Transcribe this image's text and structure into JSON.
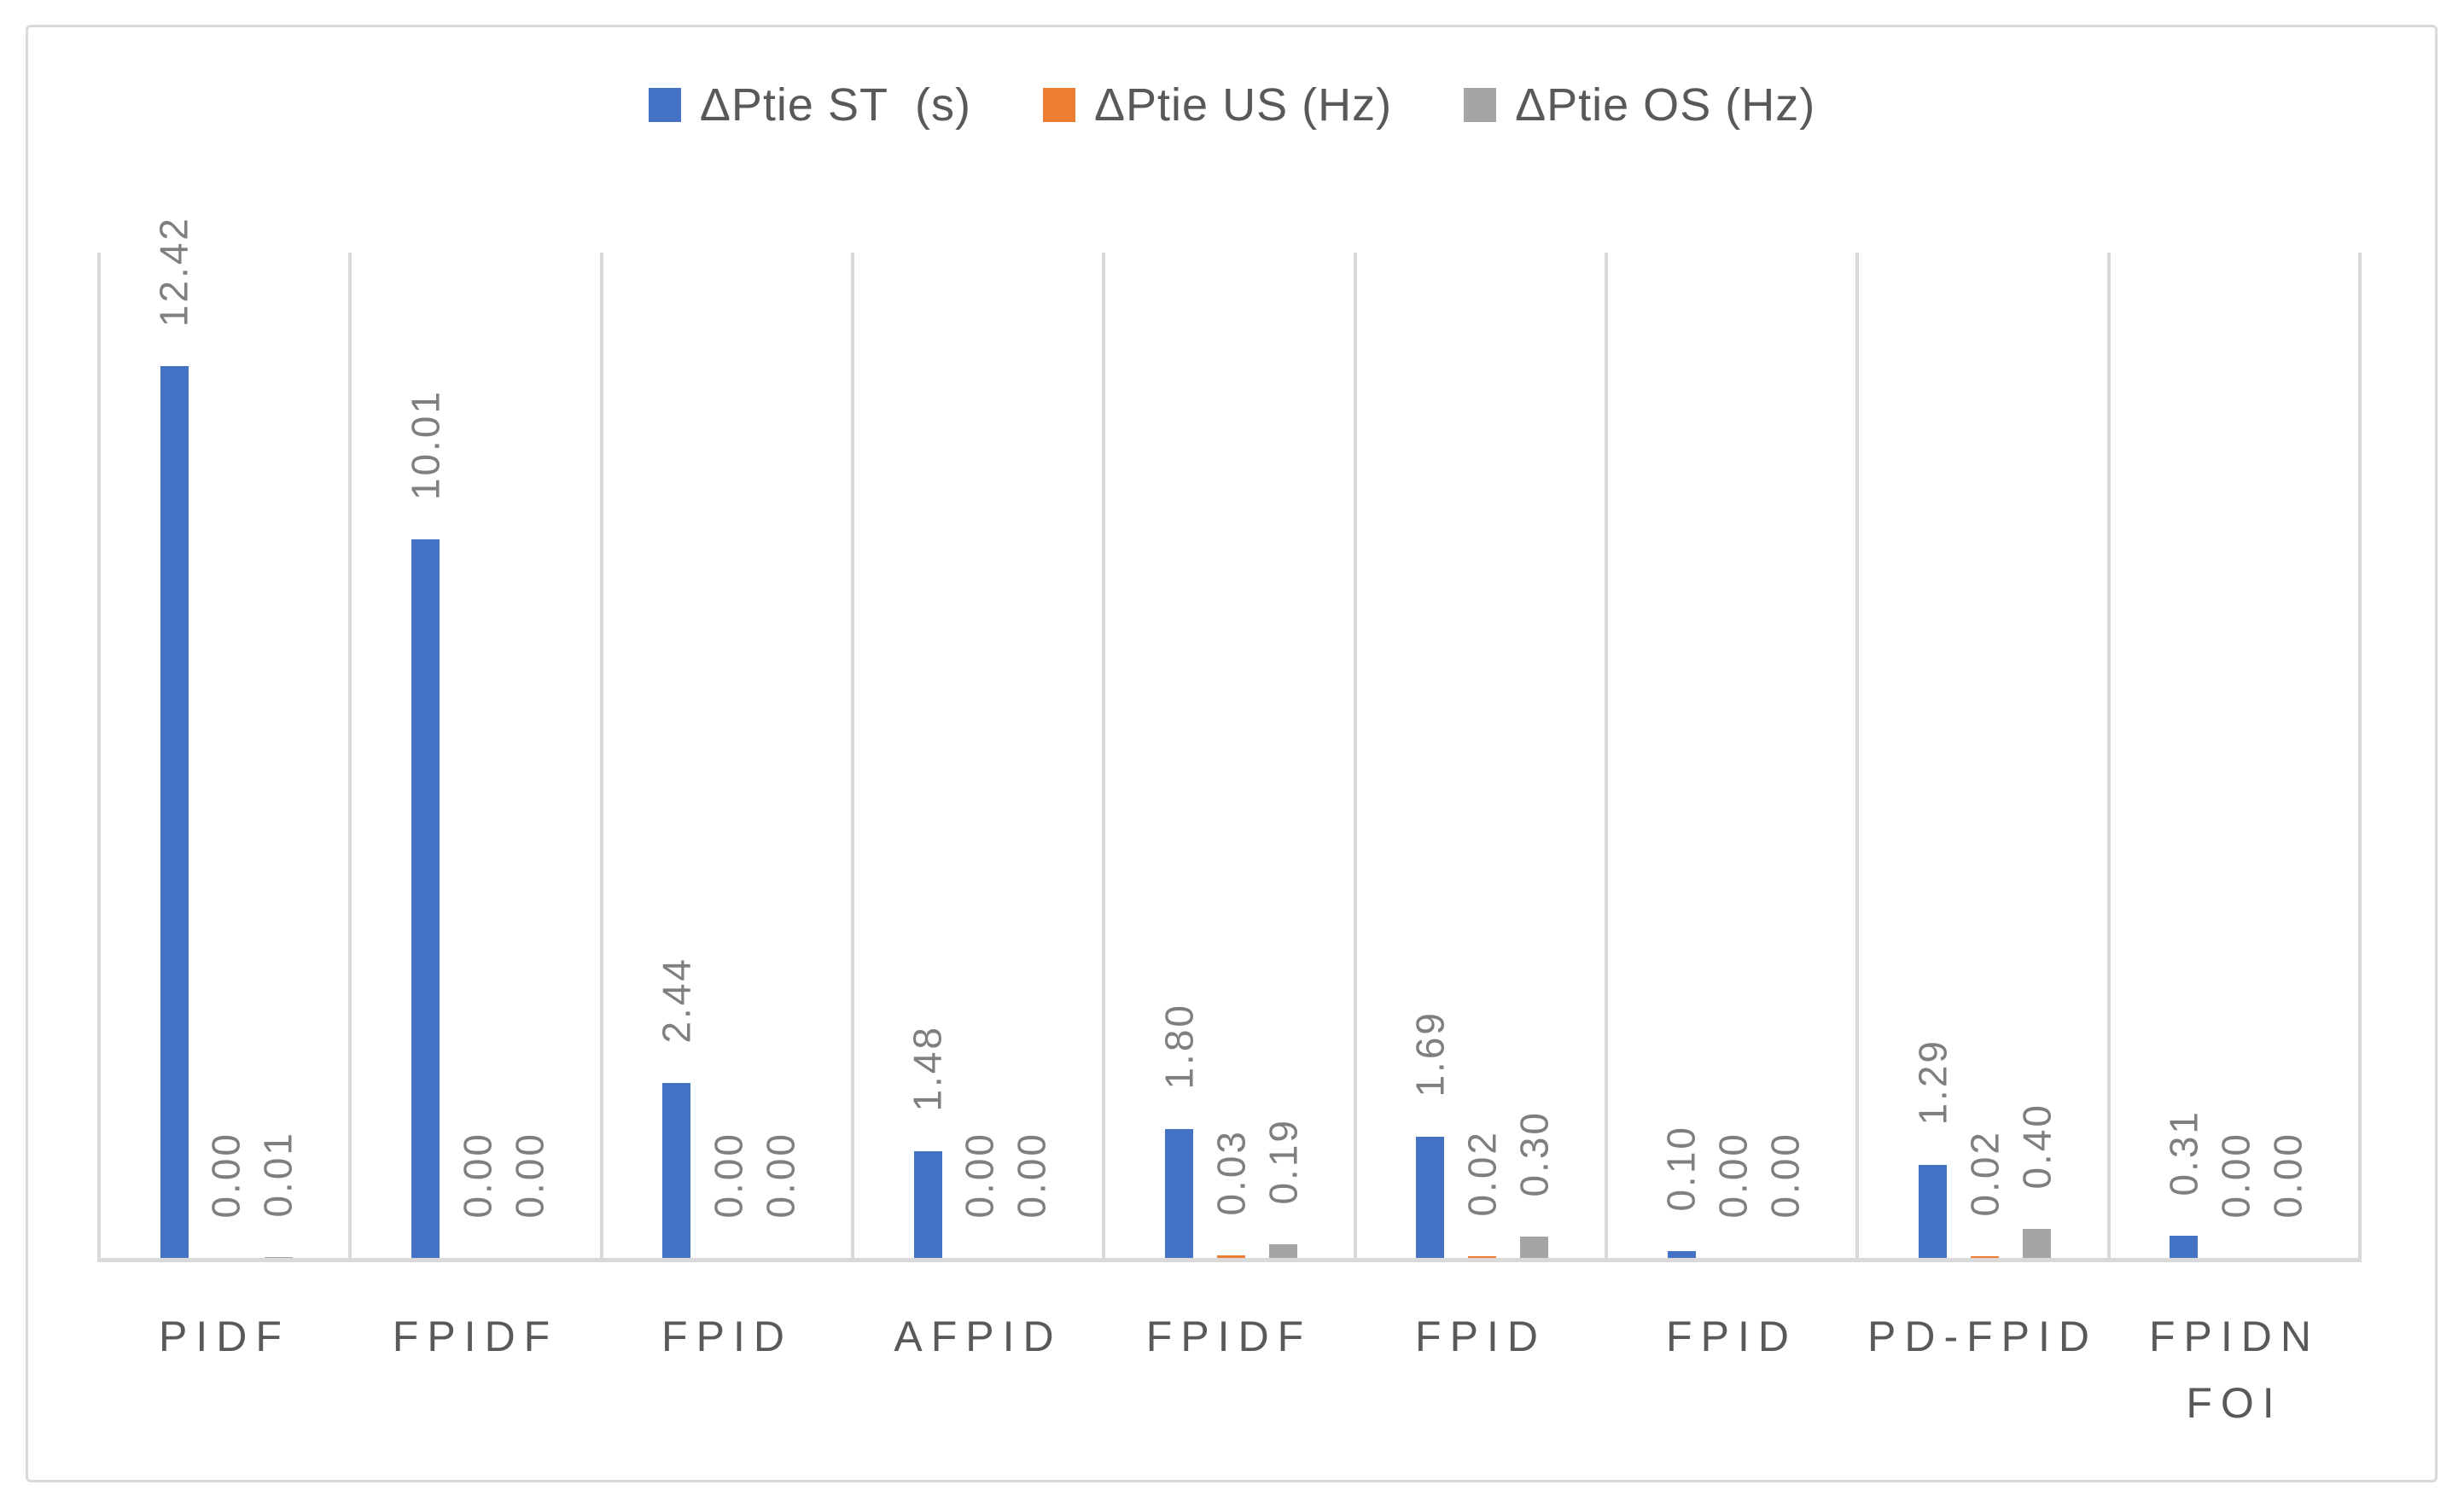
{
  "colors": {
    "background": "#FFFFFF",
    "chart_border": "#D9D9D9",
    "gridline": "#D9D9D9",
    "axis_line": "#D9D9D9",
    "data_label_text": "#7F7F7F",
    "category_label_text": "#595959",
    "legend_text": "#595959",
    "series_blue": "#4472C4",
    "series_orange": "#ED7D31",
    "series_gray": "#A5A5A5"
  },
  "chart_data": {
    "type": "bar",
    "title": "",
    "xlabel": "",
    "ylabel": "",
    "ylim": [
      0,
      14
    ],
    "y_axis_tick_labels_shown": false,
    "legend_position": "top",
    "gridlines": "vertical-category-boundaries",
    "data_label_rotation_degrees": 270,
    "categories": [
      "PIDF",
      "FPIDF",
      "FPID",
      "AFPID",
      "FPIDF",
      "FPID",
      "FPID",
      "PD-FPID",
      "FPIDN\nFOI"
    ],
    "series": [
      {
        "name": "ΔPtie ST  (s)",
        "color": "#4472C4",
        "values": [
          12.42,
          10.01,
          2.44,
          1.48,
          1.8,
          1.69,
          0.1,
          1.29,
          0.31
        ]
      },
      {
        "name": "ΔPtie US (Hz)",
        "color": "#ED7D31",
        "values": [
          0.0,
          0.0,
          0.0,
          0.0,
          0.03,
          0.02,
          0.0,
          0.02,
          0.0
        ]
      },
      {
        "name": "ΔPtie OS (Hz)",
        "color": "#A5A5A5",
        "values": [
          0.01,
          0.0,
          0.0,
          0.0,
          0.19,
          0.3,
          0.0,
          0.4,
          0.0
        ]
      }
    ],
    "data_labels": [
      [
        "12.42",
        "0.00",
        "0.01"
      ],
      [
        "10.01",
        "0.00",
        "0.00"
      ],
      [
        "2.44",
        "0.00",
        "0.00"
      ],
      [
        "1.48",
        "0.00",
        "0.00"
      ],
      [
        "1.80",
        "0.03",
        "0.19"
      ],
      [
        "1.69",
        "0.02",
        "0.30"
      ],
      [
        "0.10",
        "0.00",
        "0.00"
      ],
      [
        "1.29",
        "0.02",
        "0.40"
      ],
      [
        "0.31",
        "0.00",
        "0.00"
      ]
    ]
  }
}
